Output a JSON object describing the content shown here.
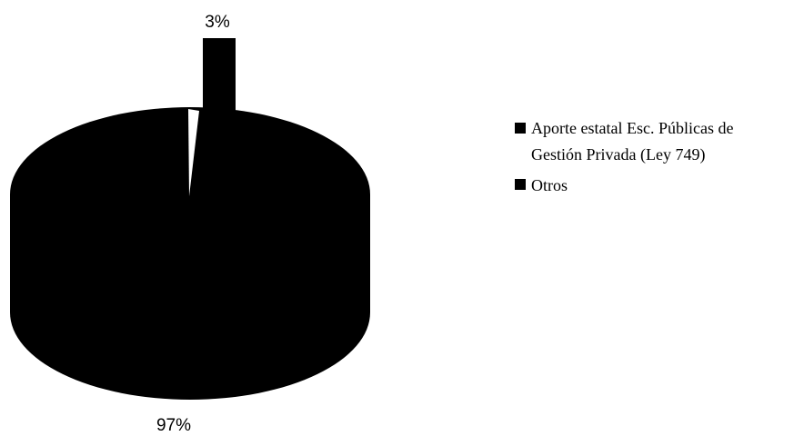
{
  "chart_data": {
    "type": "pie",
    "style": "3d-exploded",
    "title": "",
    "colors": {
      "slice": "#000000",
      "background": "#ffffff"
    },
    "slices": [
      {
        "label": "Aporte estatal Esc. Públicas de Gestión Privada (Ley 749)",
        "value": 3,
        "data_label": "3%"
      },
      {
        "label": "Otros",
        "value": 97,
        "data_label": "97%"
      }
    ],
    "legend": {
      "position": "right",
      "entries": [
        {
          "lines": [
            "Aporte estatal Esc. Públicas de",
            "Gestión Privada (Ley 749)"
          ]
        },
        {
          "lines": [
            "Otros"
          ]
        }
      ]
    }
  }
}
